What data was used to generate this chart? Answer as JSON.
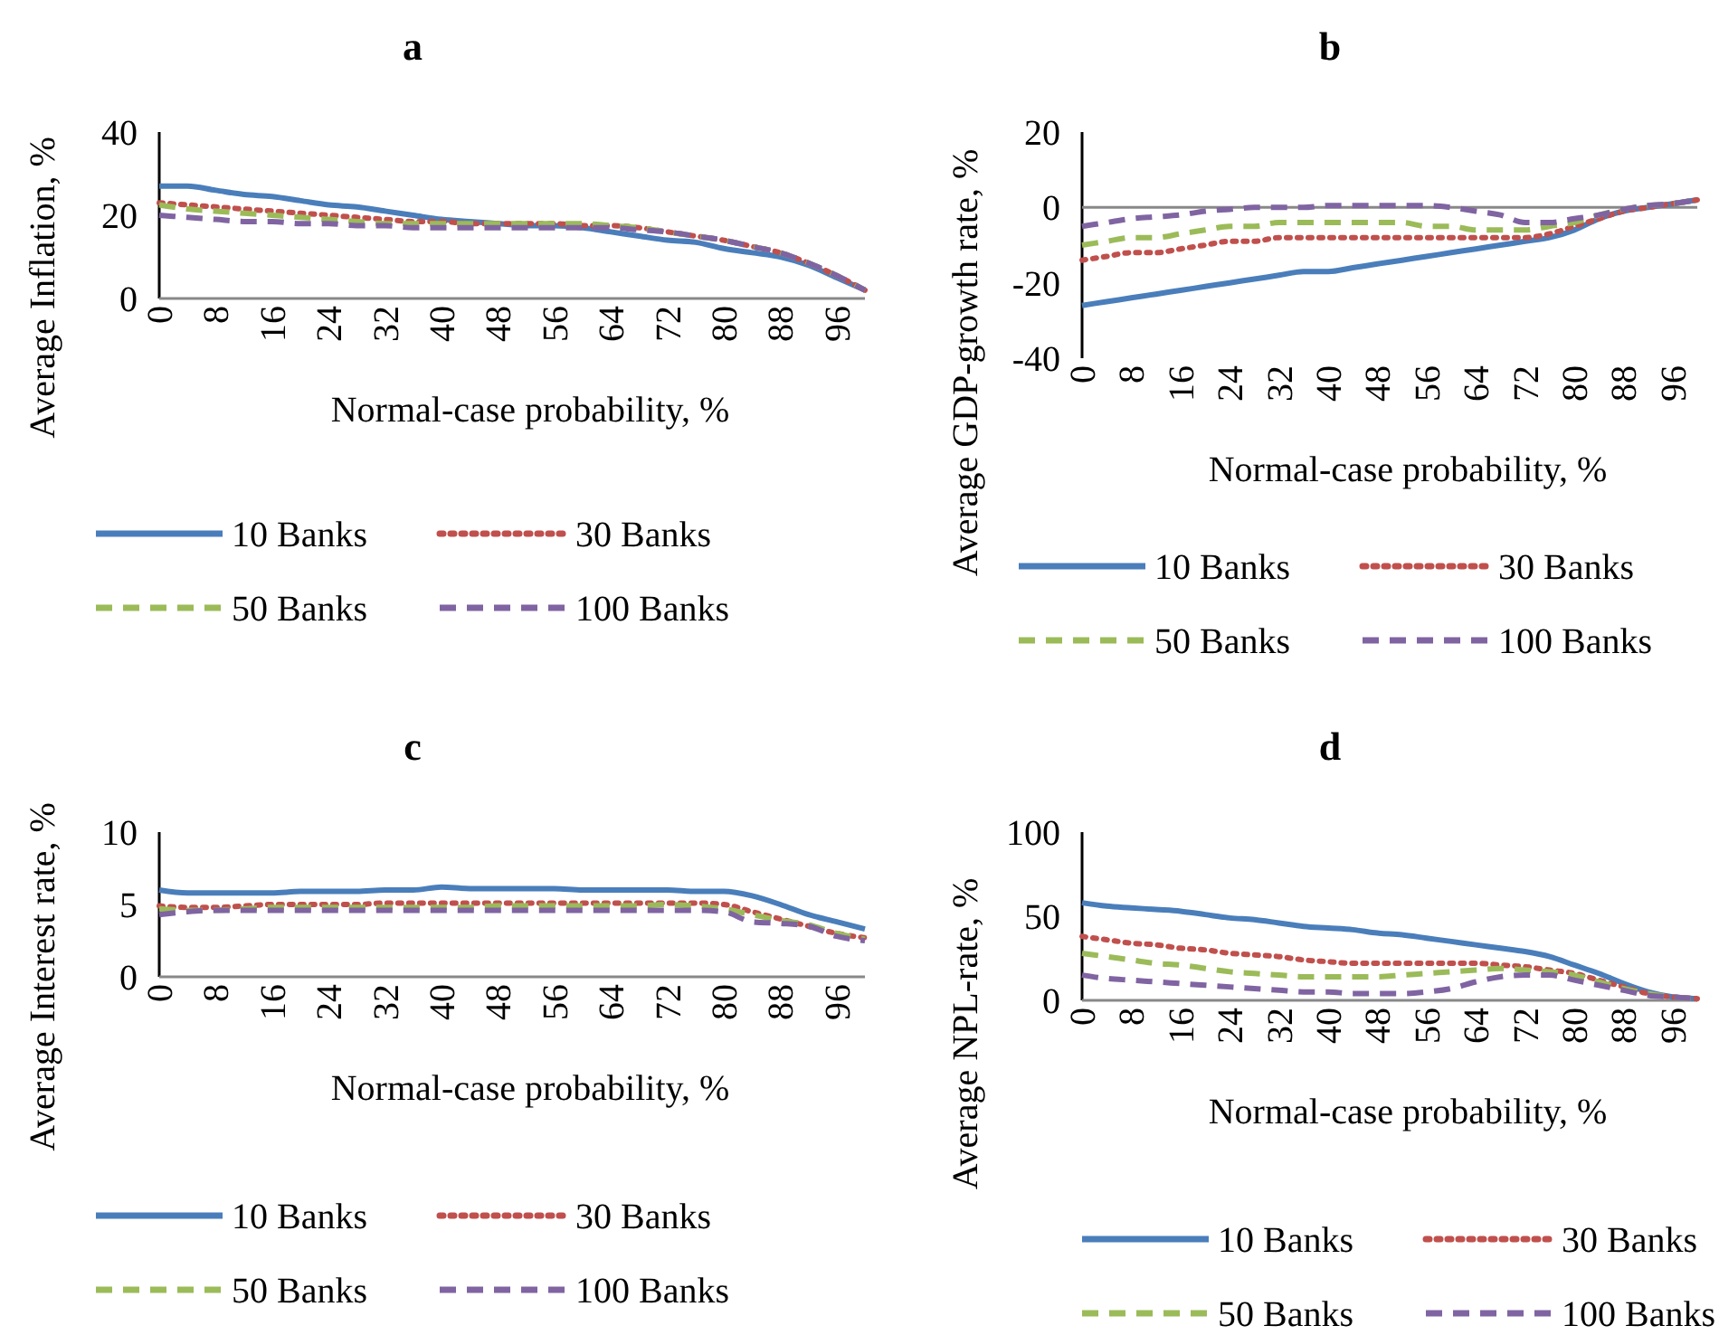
{
  "chart_data": [
    {
      "type": "line",
      "title": "a",
      "xlabel": "Normal-case probability, %",
      "ylabel": "Average Inflation, %",
      "x": [
        0,
        4,
        8,
        12,
        16,
        20,
        24,
        28,
        32,
        36,
        40,
        44,
        48,
        52,
        56,
        60,
        64,
        68,
        72,
        76,
        80,
        84,
        88,
        92,
        96,
        100
      ],
      "xlim": [
        0,
        100
      ],
      "xticks": [
        0,
        8,
        16,
        24,
        32,
        40,
        48,
        56,
        64,
        72,
        80,
        88,
        96
      ],
      "ylim": [
        0,
        40
      ],
      "yticks": [
        0,
        20,
        40
      ],
      "grid": false,
      "legend": "bottom",
      "marker": "none",
      "series": [
        {
          "name": "10 Banks",
          "color": "#4a7ebb",
          "line_style": "solid",
          "values": [
            27,
            27,
            26,
            25,
            24.5,
            23.5,
            22.5,
            22,
            21,
            20,
            19,
            18.5,
            18,
            17.5,
            17.5,
            17,
            16,
            15,
            14,
            13.5,
            12,
            11,
            10,
            8,
            5,
            2
          ]
        },
        {
          "name": "30 Banks",
          "color": "#c0504d",
          "line_style": "dotted",
          "values": [
            23,
            22.5,
            22,
            21.5,
            21,
            20.5,
            20,
            19.5,
            19,
            18.5,
            18.5,
            18,
            18,
            18,
            18,
            17.5,
            17.5,
            17,
            16,
            15,
            14,
            12.5,
            11,
            8.5,
            5.5,
            2
          ]
        },
        {
          "name": "50 Banks",
          "color": "#9bbb59",
          "line_style": "dashed",
          "values": [
            22.5,
            21.5,
            21,
            20.5,
            20,
            19.5,
            19,
            18.5,
            18,
            18,
            18,
            18,
            18,
            18,
            18,
            18,
            17.5,
            17,
            16,
            15,
            14,
            12.5,
            11,
            8.5,
            5.5,
            2
          ]
        },
        {
          "name": "100 Banks",
          "color": "#8064a2",
          "line_style": "dashed",
          "values": [
            20,
            19.5,
            19,
            18.5,
            18.5,
            18,
            18,
            17.5,
            17.5,
            17,
            17,
            17,
            17,
            17,
            17,
            17,
            17,
            16.5,
            16,
            15,
            14,
            12.5,
            11,
            8.5,
            5.5,
            2
          ]
        }
      ]
    },
    {
      "type": "line",
      "title": "b",
      "xlabel": "Normal-case probability, %",
      "ylabel": "Average GDP-growth rate, %",
      "x": [
        0,
        4,
        8,
        12,
        16,
        20,
        24,
        28,
        32,
        36,
        40,
        44,
        48,
        52,
        56,
        60,
        64,
        68,
        72,
        76,
        80,
        84,
        88,
        92,
        96,
        100
      ],
      "xlim": [
        0,
        100
      ],
      "xticks": [
        0,
        8,
        16,
        24,
        32,
        40,
        48,
        56,
        64,
        72,
        80,
        88,
        96
      ],
      "ylim": [
        -40,
        20
      ],
      "yticks": [
        -40,
        -20,
        0,
        20
      ],
      "grid": false,
      "ref_lines": [
        {
          "axis": "y",
          "value": 0,
          "color": "#888888"
        }
      ],
      "legend": "bottom",
      "marker": "none",
      "series": [
        {
          "name": "10 Banks",
          "color": "#4a7ebb",
          "line_style": "solid",
          "values": [
            -26,
            -25,
            -24,
            -23,
            -22,
            -21,
            -20,
            -19,
            -18,
            -17,
            -17,
            -16,
            -15,
            -14,
            -13,
            -12,
            -11,
            -10,
            -9,
            -8,
            -6,
            -3,
            -1,
            0,
            1,
            2
          ]
        },
        {
          "name": "30 Banks",
          "color": "#c0504d",
          "line_style": "dotted",
          "values": [
            -14,
            -13,
            -12,
            -12,
            -11,
            -10,
            -9,
            -9,
            -8,
            -8,
            -8,
            -8,
            -8,
            -8,
            -8,
            -8,
            -8,
            -8,
            -8,
            -7,
            -5,
            -3,
            -1,
            0,
            1,
            2
          ]
        },
        {
          "name": "50 Banks",
          "color": "#9bbb59",
          "line_style": "dashed",
          "values": [
            -10,
            -9,
            -8,
            -8,
            -7,
            -6,
            -5,
            -5,
            -4,
            -4,
            -4,
            -4,
            -4,
            -4,
            -5,
            -5,
            -6,
            -6,
            -6,
            -5,
            -4,
            -2,
            -0.5,
            0.5,
            1,
            2
          ]
        },
        {
          "name": "100 Banks",
          "color": "#8064a2",
          "line_style": "dashed",
          "values": [
            -5,
            -4,
            -3,
            -2.5,
            -2,
            -1,
            -0.5,
            0,
            0,
            0,
            0.5,
            0.5,
            0.5,
            0.5,
            0.5,
            0,
            -1,
            -2,
            -4,
            -4,
            -3,
            -2,
            -0.5,
            0.5,
            1,
            2
          ]
        }
      ]
    },
    {
      "type": "line",
      "title": "c",
      "xlabel": "Normal-case probability, %",
      "ylabel": "Average Interest rate, %",
      "x": [
        0,
        4,
        8,
        12,
        16,
        20,
        24,
        28,
        32,
        36,
        40,
        44,
        48,
        52,
        56,
        60,
        64,
        68,
        72,
        76,
        80,
        84,
        88,
        92,
        96,
        100
      ],
      "xlim": [
        0,
        100
      ],
      "xticks": [
        0,
        8,
        16,
        24,
        32,
        40,
        48,
        56,
        64,
        72,
        80,
        88,
        96
      ],
      "ylim": [
        0,
        10
      ],
      "yticks": [
        0,
        5,
        10
      ],
      "grid": false,
      "legend": "bottom",
      "marker": "none",
      "series": [
        {
          "name": "10 Banks",
          "color": "#4a7ebb",
          "line_style": "solid",
          "values": [
            6,
            5.8,
            5.8,
            5.8,
            5.8,
            5.9,
            5.9,
            5.9,
            6,
            6,
            6.2,
            6.1,
            6.1,
            6.1,
            6.1,
            6,
            6,
            6,
            6,
            5.9,
            5.9,
            5.6,
            5,
            4.3,
            3.8,
            3.3
          ]
        },
        {
          "name": "30 Banks",
          "color": "#c0504d",
          "line_style": "dotted",
          "values": [
            4.9,
            4.8,
            4.8,
            4.9,
            5,
            5,
            5,
            5,
            5.1,
            5.1,
            5.1,
            5.1,
            5.1,
            5.1,
            5.1,
            5.1,
            5.1,
            5.1,
            5.1,
            5.1,
            5,
            4.5,
            4,
            3.5,
            3,
            2.7
          ]
        },
        {
          "name": "50 Banks",
          "color": "#9bbb59",
          "line_style": "dashed",
          "values": [
            4.7,
            4.6,
            4.6,
            4.7,
            4.8,
            4.8,
            4.8,
            4.8,
            4.8,
            4.8,
            4.8,
            4.8,
            4.9,
            4.9,
            4.9,
            4.9,
            4.9,
            4.9,
            5,
            4.9,
            4.7,
            4.3,
            3.9,
            3.6,
            3,
            2.6
          ]
        },
        {
          "name": "100 Banks",
          "color": "#8064a2",
          "line_style": "dashed",
          "values": [
            4.3,
            4.5,
            4.6,
            4.6,
            4.6,
            4.6,
            4.6,
            4.6,
            4.6,
            4.6,
            4.6,
            4.6,
            4.6,
            4.6,
            4.6,
            4.6,
            4.6,
            4.6,
            4.6,
            4.6,
            4.5,
            3.8,
            3.7,
            3.5,
            2.8,
            2.5
          ]
        }
      ]
    },
    {
      "type": "line",
      "title": "d",
      "xlabel": "Normal-case probability, %",
      "ylabel": "Average NPL-rate, %",
      "x": [
        0,
        4,
        8,
        12,
        16,
        20,
        24,
        28,
        32,
        36,
        40,
        44,
        48,
        52,
        56,
        60,
        64,
        68,
        72,
        76,
        80,
        84,
        88,
        92,
        96,
        100
      ],
      "xlim": [
        0,
        100
      ],
      "xticks": [
        0,
        8,
        16,
        24,
        32,
        40,
        48,
        56,
        64,
        72,
        80,
        88,
        96
      ],
      "ylim": [
        0,
        100
      ],
      "yticks": [
        0,
        50,
        100
      ],
      "grid": false,
      "legend": "bottom",
      "marker": "none",
      "series": [
        {
          "name": "10 Banks",
          "color": "#4a7ebb",
          "line_style": "solid",
          "values": [
            58,
            56,
            55,
            54,
            53,
            51,
            49,
            48,
            46,
            44,
            43,
            42,
            40,
            39,
            37,
            35,
            33,
            31,
            29,
            26,
            21,
            16,
            10,
            5,
            2,
            1
          ]
        },
        {
          "name": "30 Banks",
          "color": "#c0504d",
          "line_style": "dotted",
          "values": [
            38,
            36,
            34,
            33,
            31,
            30,
            28,
            27,
            26,
            24,
            23,
            22,
            22,
            22,
            22,
            22,
            22,
            21,
            20,
            18,
            16,
            12,
            8,
            4,
            2,
            1
          ]
        },
        {
          "name": "50 Banks",
          "color": "#9bbb59",
          "line_style": "dashed",
          "values": [
            28,
            26,
            24,
            22,
            21,
            19,
            17,
            16,
            15,
            14,
            14,
            14,
            14,
            15,
            16,
            17,
            18,
            19,
            18,
            17,
            15,
            11,
            7,
            4,
            2,
            1
          ]
        },
        {
          "name": "100 Banks",
          "color": "#8064a2",
          "line_style": "dashed",
          "values": [
            15,
            13,
            12,
            11,
            10,
            9,
            8,
            7,
            6,
            5,
            5,
            4,
            4,
            4,
            5,
            7,
            11,
            14,
            15,
            15,
            12,
            9,
            6,
            3,
            2,
            1
          ]
        }
      ]
    }
  ]
}
